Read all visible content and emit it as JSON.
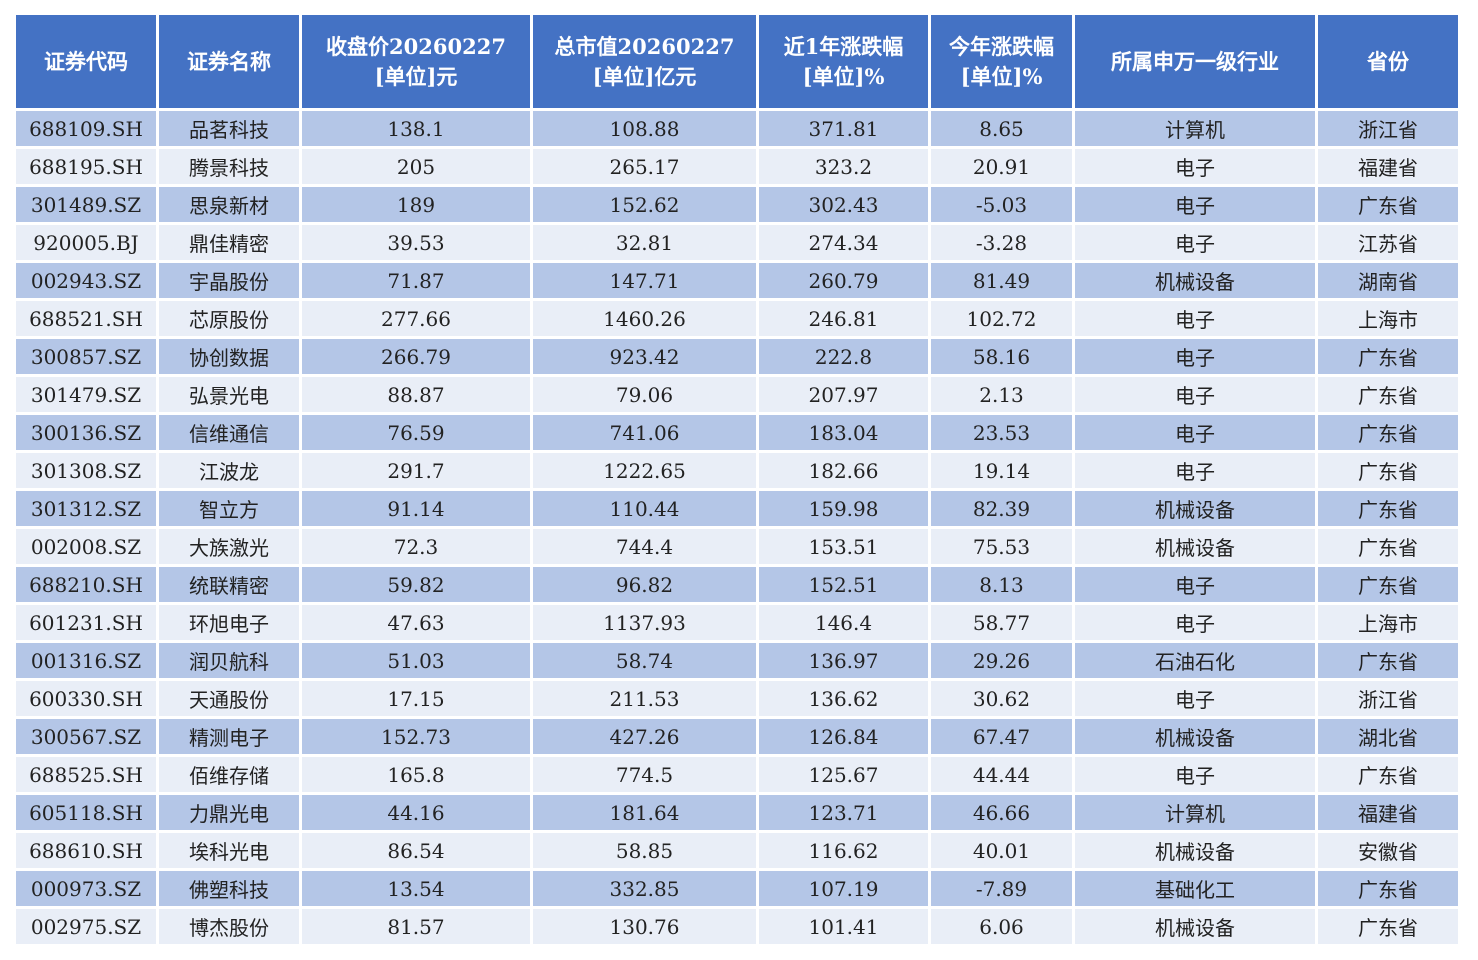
{
  "table": {
    "header": [
      "证券代码",
      "证券名称",
      "收盘价20260227\n[单位]元",
      "总市值20260227\n[单位]亿元",
      "近1年涨跌幅\n[单位]%",
      "今年涨跌幅\n[单位]%",
      "所属申万一级行业",
      "省份"
    ],
    "rows": [
      [
        "688109.SH",
        "品茗科技",
        "138.1",
        "108.88",
        "371.81",
        "8.65",
        "计算机",
        "浙江省"
      ],
      [
        "688195.SH",
        "腾景科技",
        "205",
        "265.17",
        "323.2",
        "20.91",
        "电子",
        "福建省"
      ],
      [
        "301489.SZ",
        "思泉新材",
        "189",
        "152.62",
        "302.43",
        "-5.03",
        "电子",
        "广东省"
      ],
      [
        "920005.BJ",
        "鼎佳精密",
        "39.53",
        "32.81",
        "274.34",
        "-3.28",
        "电子",
        "江苏省"
      ],
      [
        "002943.SZ",
        "宇晶股份",
        "71.87",
        "147.71",
        "260.79",
        "81.49",
        "机械设备",
        "湖南省"
      ],
      [
        "688521.SH",
        "芯原股份",
        "277.66",
        "1460.26",
        "246.81",
        "102.72",
        "电子",
        "上海市"
      ],
      [
        "300857.SZ",
        "协创数据",
        "266.79",
        "923.42",
        "222.8",
        "58.16",
        "电子",
        "广东省"
      ],
      [
        "301479.SZ",
        "弘景光电",
        "88.87",
        "79.06",
        "207.97",
        "2.13",
        "电子",
        "广东省"
      ],
      [
        "300136.SZ",
        "信维通信",
        "76.59",
        "741.06",
        "183.04",
        "23.53",
        "电子",
        "广东省"
      ],
      [
        "301308.SZ",
        "江波龙",
        "291.7",
        "1222.65",
        "182.66",
        "19.14",
        "电子",
        "广东省"
      ],
      [
        "301312.SZ",
        "智立方",
        "91.14",
        "110.44",
        "159.98",
        "82.39",
        "机械设备",
        "广东省"
      ],
      [
        "002008.SZ",
        "大族激光",
        "72.3",
        "744.4",
        "153.51",
        "75.53",
        "机械设备",
        "广东省"
      ],
      [
        "688210.SH",
        "统联精密",
        "59.82",
        "96.82",
        "152.51",
        "8.13",
        "电子",
        "广东省"
      ],
      [
        "601231.SH",
        "环旭电子",
        "47.63",
        "1137.93",
        "146.4",
        "58.77",
        "电子",
        "上海市"
      ],
      [
        "001316.SZ",
        "润贝航科",
        "51.03",
        "58.74",
        "136.97",
        "29.26",
        "石油石化",
        "广东省"
      ],
      [
        "600330.SH",
        "天通股份",
        "17.15",
        "211.53",
        "136.62",
        "30.62",
        "电子",
        "浙江省"
      ],
      [
        "300567.SZ",
        "精测电子",
        "152.73",
        "427.26",
        "126.84",
        "67.47",
        "机械设备",
        "湖北省"
      ],
      [
        "688525.SH",
        "佰维存储",
        "165.8",
        "774.5",
        "125.67",
        "44.44",
        "电子",
        "广东省"
      ],
      [
        "605118.SH",
        "力鼎光电",
        "44.16",
        "181.64",
        "123.71",
        "46.66",
        "计算机",
        "福建省"
      ],
      [
        "688610.SH",
        "埃科光电",
        "86.54",
        "58.85",
        "116.62",
        "40.01",
        "机械设备",
        "安徽省"
      ],
      [
        "000973.SZ",
        "佛塑科技",
        "13.54",
        "332.85",
        "107.19",
        "-7.89",
        "基础化工",
        "广东省"
      ],
      [
        "002975.SZ",
        "博杰股份",
        "81.57",
        "130.76",
        "101.41",
        "6.06",
        "机械设备",
        "广东省"
      ]
    ]
  }
}
